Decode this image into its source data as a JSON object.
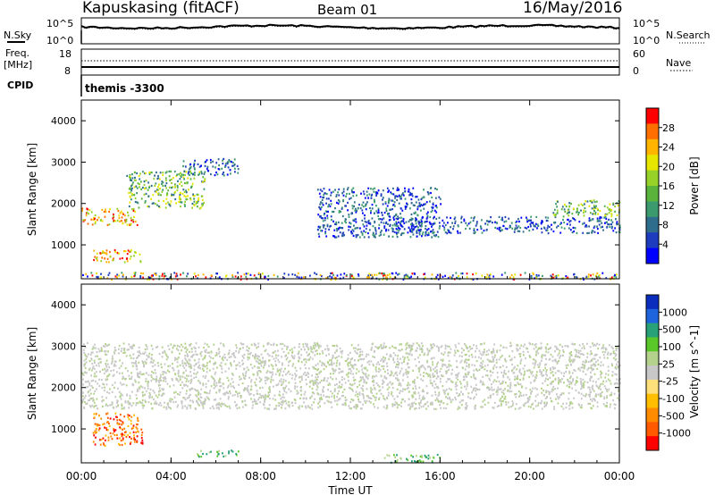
{
  "header": {
    "station": "Kapuskasing (fitACF)",
    "beam": "Beam 01",
    "date": "16/May/2016"
  },
  "top_panels": {
    "nsky_label": "N.Sky",
    "nsearch_label": "N.Search",
    "noise_ticks": [
      "10^5",
      "10^0"
    ],
    "freq_label": "Freq.",
    "freq_unit": "[MHz]",
    "freq_ticks": [
      "18",
      "8"
    ],
    "nave_label": "Nave",
    "nave_ticks": [
      "60",
      "0"
    ],
    "cpid_label": "CPID",
    "cpid_value": "themis -3300"
  },
  "chart_data": [
    {
      "type": "heatmap",
      "title": "Power",
      "ylabel": "Slant Range [km]",
      "xlabel": "",
      "xlim": [
        "00:00",
        "24:00"
      ],
      "ylim": [
        180,
        4500
      ],
      "x_ticks": [
        "00:00",
        "04:00",
        "08:00",
        "12:00",
        "16:00",
        "20:00",
        "00:00"
      ],
      "y_ticks": [
        1000,
        2000,
        3000,
        4000
      ],
      "colorbar": {
        "label": "Power [dB]",
        "ticks": [
          "4",
          "8",
          "12",
          "16",
          "20",
          "24",
          "28"
        ],
        "range": [
          0,
          32
        ],
        "colors": [
          "#0000ff",
          "#1e3cbe",
          "#2e6e8c",
          "#3c9b6e",
          "#5ab43c",
          "#96d228",
          "#e6e600",
          "#ffb400",
          "#ff6e00",
          "#ff0000"
        ]
      },
      "regions": [
        {
          "x_start_h": 0.0,
          "x_end_h": 2.5,
          "range_from_km": 1500,
          "range_to_km": 1900,
          "level": "high"
        },
        {
          "x_start_h": 2.0,
          "x_end_h": 5.5,
          "range_from_km": 1900,
          "range_to_km": 2800,
          "level": "medium"
        },
        {
          "x_start_h": 4.5,
          "x_end_h": 7.0,
          "range_from_km": 2700,
          "range_to_km": 3100,
          "level": "low"
        },
        {
          "x_start_h": 0.5,
          "x_end_h": 2.7,
          "range_from_km": 600,
          "range_to_km": 900,
          "level": "high"
        },
        {
          "x_start_h": 10.5,
          "x_end_h": 16.0,
          "range_from_km": 1200,
          "range_to_km": 2400,
          "level": "low"
        },
        {
          "x_start_h": 14.0,
          "x_end_h": 24.0,
          "range_from_km": 1300,
          "range_to_km": 1700,
          "level": "low"
        },
        {
          "x_start_h": 21.0,
          "x_end_h": 24.0,
          "range_from_km": 1700,
          "range_to_km": 2100,
          "level": "medium"
        },
        {
          "x_start_h": 0.0,
          "x_end_h": 24.0,
          "range_from_km": 180,
          "range_to_km": 350,
          "level": "mixed"
        }
      ]
    },
    {
      "type": "heatmap",
      "title": "Velocity",
      "ylabel": "Slant Range [km]",
      "xlabel": "Time UT",
      "xlim": [
        "00:00",
        "24:00"
      ],
      "ylim": [
        180,
        4500
      ],
      "x_ticks": [
        "00:00",
        "04:00",
        "08:00",
        "12:00",
        "16:00",
        "20:00",
        "00:00"
      ],
      "y_ticks": [
        1000,
        2000,
        3000,
        4000
      ],
      "colorbar": {
        "label": "Velocity [m s^-1]",
        "ticks": [
          "1000",
          "500",
          "100",
          "25",
          "-25",
          "-100",
          "-500",
          "-1000"
        ],
        "colors": [
          "#0b2dbe",
          "#1e64dc",
          "#28a078",
          "#5ac828",
          "#b4d28c",
          "#c8c8c8",
          "#ffe07a",
          "#ffbe00",
          "#ff8c00",
          "#ff5a00",
          "#ff0000"
        ]
      },
      "regions": [
        {
          "x_start_h": 0.0,
          "x_end_h": 24.0,
          "range_from_km": 1500,
          "range_to_km": 3100,
          "level": "ground-scatter"
        },
        {
          "x_start_h": 0.5,
          "x_end_h": 2.7,
          "range_from_km": 600,
          "range_to_km": 1400,
          "level": "away"
        },
        {
          "x_start_h": 5.0,
          "x_end_h": 7.0,
          "range_from_km": 350,
          "range_to_km": 500,
          "level": "toward"
        },
        {
          "x_start_h": 13.5,
          "x_end_h": 16.0,
          "range_from_km": 200,
          "range_to_km": 400,
          "level": "toward"
        }
      ]
    }
  ]
}
